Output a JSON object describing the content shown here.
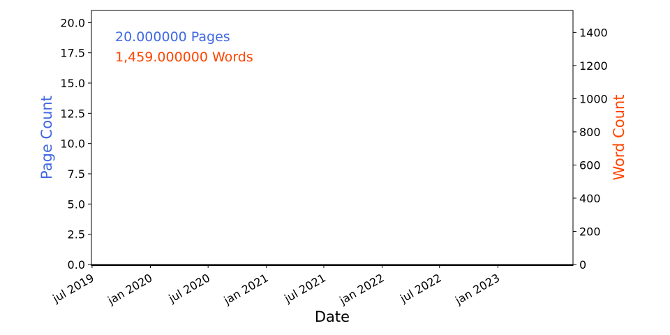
{
  "colors": {
    "left_axis": "#4169e1",
    "right_axis": "#ff4500",
    "axis": "#000000",
    "background": "#ffffff"
  },
  "chart_data": {
    "type": "line",
    "xlabel": "Date",
    "ylabel_left": "Page Count",
    "ylabel_right": "Word Count",
    "x_axis": {
      "kind": "date",
      "range": [
        "2019-06-29",
        "2023-08-26"
      ],
      "tick_dates": [
        "2019-07-01",
        "2020-01-01",
        "2020-07-01",
        "2021-01-01",
        "2021-07-01",
        "2022-01-01",
        "2022-07-01",
        "2023-01-01"
      ],
      "tick_labels": [
        "jul 2019",
        "jan 2020",
        "jul 2020",
        "jan 2021",
        "jul 2021",
        "jan 2022",
        "jul 2022",
        "jan 2023"
      ],
      "minor_ticks": "daily"
    },
    "y_left": {
      "range": [
        0,
        21
      ],
      "ticks": [
        0.0,
        2.5,
        5.0,
        7.5,
        10.0,
        12.5,
        15.0,
        17.5,
        20.0
      ],
      "tick_labels": [
        "0.0",
        "2.5",
        "5.0",
        "7.5",
        "10.0",
        "12.5",
        "15.0",
        "17.5",
        "20.0"
      ]
    },
    "y_right": {
      "range": [
        0,
        1532
      ],
      "ticks": [
        0,
        200,
        400,
        600,
        800,
        1000,
        1200,
        1400
      ],
      "tick_labels": [
        "0",
        "200",
        "400",
        "600",
        "800",
        "1000",
        "1200",
        "1400"
      ]
    },
    "series": [],
    "annotations": [
      {
        "text": "20.000000 Pages",
        "color": "#4169e1"
      },
      {
        "text": "1,459.000000 Words",
        "color": "#ff4500"
      }
    ],
    "grid": false,
    "legend": "none"
  }
}
